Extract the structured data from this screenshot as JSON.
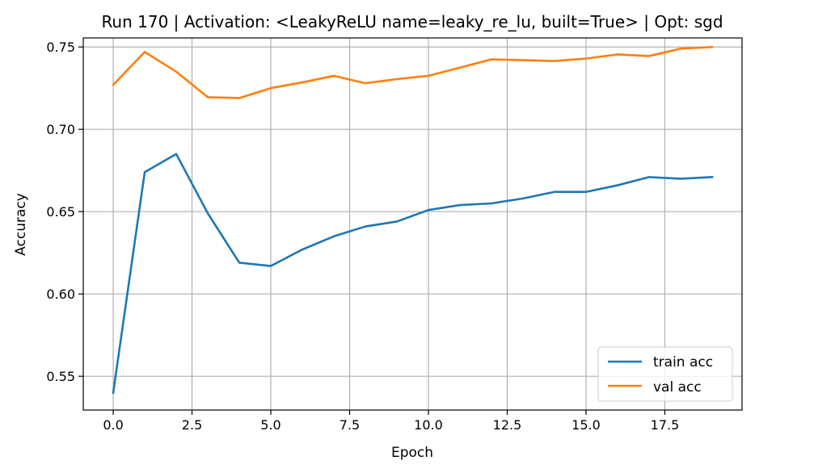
{
  "chart_data": {
    "type": "line",
    "title": "Run 170 | Activation: <LeakyReLU name=leaky_re_lu, built=True> | Opt: sgd",
    "xlabel": "Epoch",
    "ylabel": "Accuracy",
    "xlim": [
      -0.95,
      19.95
    ],
    "ylim": [
      0.5295,
      0.7555
    ],
    "xticks": [
      0.0,
      2.5,
      5.0,
      7.5,
      10.0,
      12.5,
      15.0,
      17.5
    ],
    "xtick_labels": [
      "0.0",
      "2.5",
      "5.0",
      "7.5",
      "10.0",
      "12.5",
      "15.0",
      "17.5"
    ],
    "yticks": [
      0.55,
      0.6,
      0.65,
      0.7,
      0.75
    ],
    "ytick_labels": [
      "0.55",
      "0.60",
      "0.65",
      "0.70",
      "0.75"
    ],
    "grid": true,
    "legend_position": "lower-right",
    "x": [
      0,
      1,
      2,
      3,
      4,
      5,
      6,
      7,
      8,
      9,
      10,
      11,
      12,
      13,
      14,
      15,
      16,
      17,
      18,
      19
    ],
    "series": [
      {
        "name": "train acc",
        "color": "#1f77b4",
        "values": [
          0.54,
          0.674,
          0.685,
          0.649,
          0.619,
          0.617,
          0.627,
          0.635,
          0.641,
          0.644,
          0.651,
          0.654,
          0.655,
          0.658,
          0.662,
          0.662,
          0.666,
          0.671,
          0.67,
          0.671
        ]
      },
      {
        "name": "val acc",
        "color": "#ff7f0e",
        "values": [
          0.727,
          0.747,
          0.735,
          0.7195,
          0.719,
          0.725,
          0.7285,
          0.7325,
          0.728,
          0.7305,
          0.7325,
          0.7375,
          0.7425,
          0.742,
          0.7415,
          0.743,
          0.7455,
          0.7445,
          0.749,
          0.75
        ]
      }
    ]
  }
}
